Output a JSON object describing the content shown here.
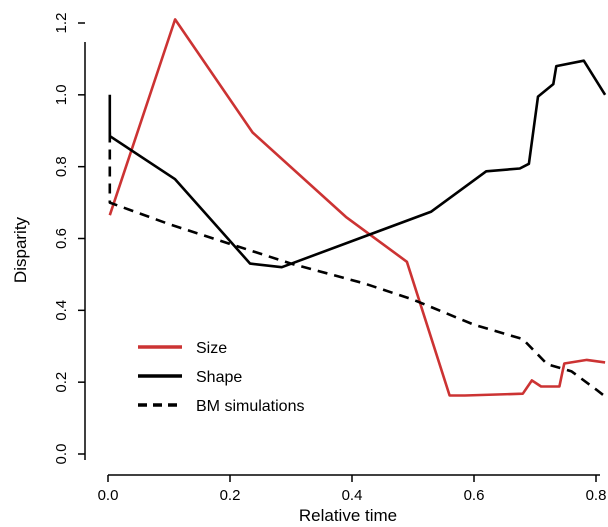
{
  "chart_data": {
    "type": "line",
    "title": "",
    "xlabel": "Relative time",
    "ylabel": "Disparity",
    "xlim": [
      0,
      0.82
    ],
    "ylim": [
      0,
      1.25
    ],
    "x_ticks": [
      0.0,
      0.2,
      0.4,
      0.6,
      0.8
    ],
    "x_tick_labels": [
      "0.0",
      "0.2",
      "0.4",
      "0.6",
      "0.8"
    ],
    "y_ticks": [
      0.0,
      0.2,
      0.4,
      0.6,
      0.8,
      1.0,
      1.2
    ],
    "y_tick_labels": [
      "0.0",
      "0.2",
      "0.4",
      "0.6",
      "0.8",
      "1.0",
      "1.2"
    ],
    "grid": false,
    "legend_position": "bottom-left",
    "series": [
      {
        "name": "Size",
        "color": "#cc3333",
        "line_style": "solid",
        "points": [
          [
            0.003,
            0.665
          ],
          [
            0.11,
            1.21
          ],
          [
            0.237,
            0.895
          ],
          [
            0.39,
            0.66
          ],
          [
            0.49,
            0.535
          ],
          [
            0.56,
            0.163
          ],
          [
            0.585,
            0.163
          ],
          [
            0.68,
            0.168
          ],
          [
            0.695,
            0.205
          ],
          [
            0.71,
            0.188
          ],
          [
            0.74,
            0.188
          ],
          [
            0.745,
            0.228
          ],
          [
            0.748,
            0.252
          ],
          [
            0.785,
            0.262
          ],
          [
            0.815,
            0.255
          ]
        ]
      },
      {
        "name": "Shape",
        "color": "#000000",
        "line_style": "solid",
        "points": [
          [
            0.003,
            1.0
          ],
          [
            0.003,
            0.885
          ],
          [
            0.11,
            0.765
          ],
          [
            0.233,
            0.53
          ],
          [
            0.285,
            0.52
          ],
          [
            0.53,
            0.675
          ],
          [
            0.62,
            0.787
          ],
          [
            0.675,
            0.795
          ],
          [
            0.69,
            0.808
          ],
          [
            0.705,
            0.995
          ],
          [
            0.73,
            1.03
          ],
          [
            0.735,
            1.08
          ],
          [
            0.78,
            1.095
          ],
          [
            0.815,
            1.0
          ]
        ]
      },
      {
        "name": "BM simulations",
        "color": "#000000",
        "line_style": "dashed",
        "points": [
          [
            0.003,
            0.895
          ],
          [
            0.003,
            0.7
          ],
          [
            0.1,
            0.64
          ],
          [
            0.2,
            0.585
          ],
          [
            0.3,
            0.53
          ],
          [
            0.42,
            0.475
          ],
          [
            0.5,
            0.43
          ],
          [
            0.6,
            0.36
          ],
          [
            0.68,
            0.32
          ],
          [
            0.72,
            0.25
          ],
          [
            0.76,
            0.23
          ],
          [
            0.8,
            0.18
          ],
          [
            0.815,
            0.16
          ]
        ]
      }
    ]
  }
}
